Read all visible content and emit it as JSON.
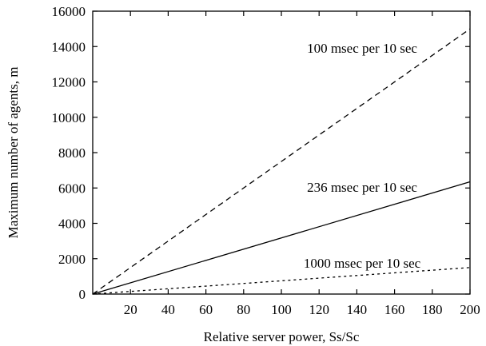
{
  "chart_data": {
    "type": "line",
    "title": "",
    "xlabel": "Relative server power, Ss/Sc",
    "ylabel": "Maximum number of agents, m",
    "xlim": [
      0,
      200
    ],
    "ylim": [
      0,
      16000
    ],
    "xticks": [
      20,
      40,
      60,
      80,
      100,
      120,
      140,
      160,
      180,
      200
    ],
    "yticks": [
      0,
      2000,
      4000,
      6000,
      8000,
      10000,
      12000,
      14000,
      16000
    ],
    "grid": false,
    "legend": "none",
    "series": [
      {
        "name": "100 msec per 10 sec",
        "dash": "dashed",
        "color": "#000000",
        "x": [
          0,
          200
        ],
        "y": [
          0,
          15000
        ]
      },
      {
        "name": "236 msec per 10 sec",
        "dash": "solid",
        "color": "#000000",
        "x": [
          0,
          200
        ],
        "y": [
          0,
          6350
        ]
      },
      {
        "name": "1000 msec per 10 sec",
        "dash": "dotted",
        "color": "#000000",
        "x": [
          0,
          200
        ],
        "y": [
          0,
          1500
        ]
      }
    ]
  }
}
